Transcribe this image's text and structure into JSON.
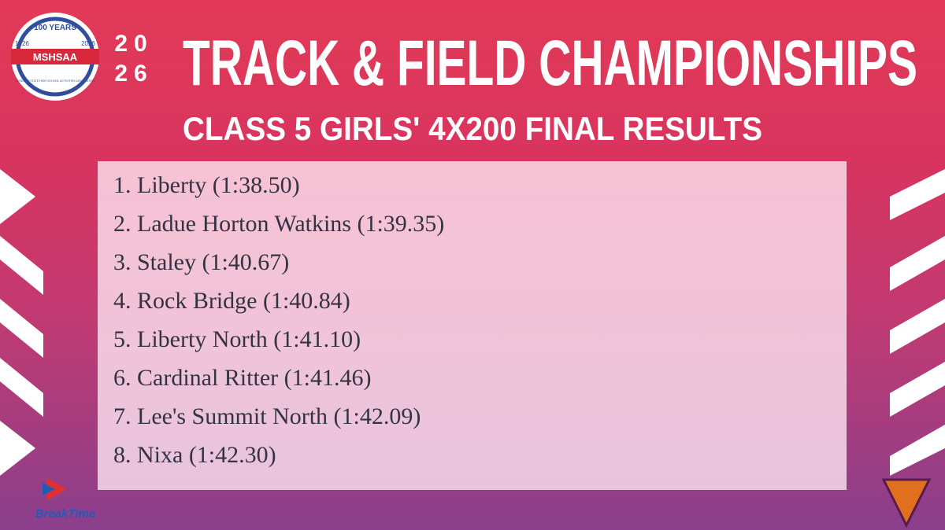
{
  "logo": {
    "years": "100 YEARS",
    "name": "MSHSAA",
    "start": "1926",
    "end": "2026",
    "association": "MISSOURI STATE HIGH SCHOOL ACTIVITIES ASSOCIATION"
  },
  "header": {
    "year_top": "20",
    "year_bottom": "26",
    "title": "TRACK & FIELD CHAMPIONSHIPS",
    "subtitle": "CLASS 5 GIRLS' 4X200 FINAL RESULTS"
  },
  "results": [
    "1. Liberty (1:38.50)",
    "2. Ladue Horton Watkins (1:39.35)",
    "3. Staley (1:40.67)",
    "4. Rock Bridge (1:40.84)",
    "5. Liberty North (1:41.10)",
    "6. Cardinal Ritter (1:41.46)",
    "7. Lee's Summit North (1:42.09)",
    "8. Nixa (1:42.30)"
  ],
  "sponsor": "BreakTime"
}
